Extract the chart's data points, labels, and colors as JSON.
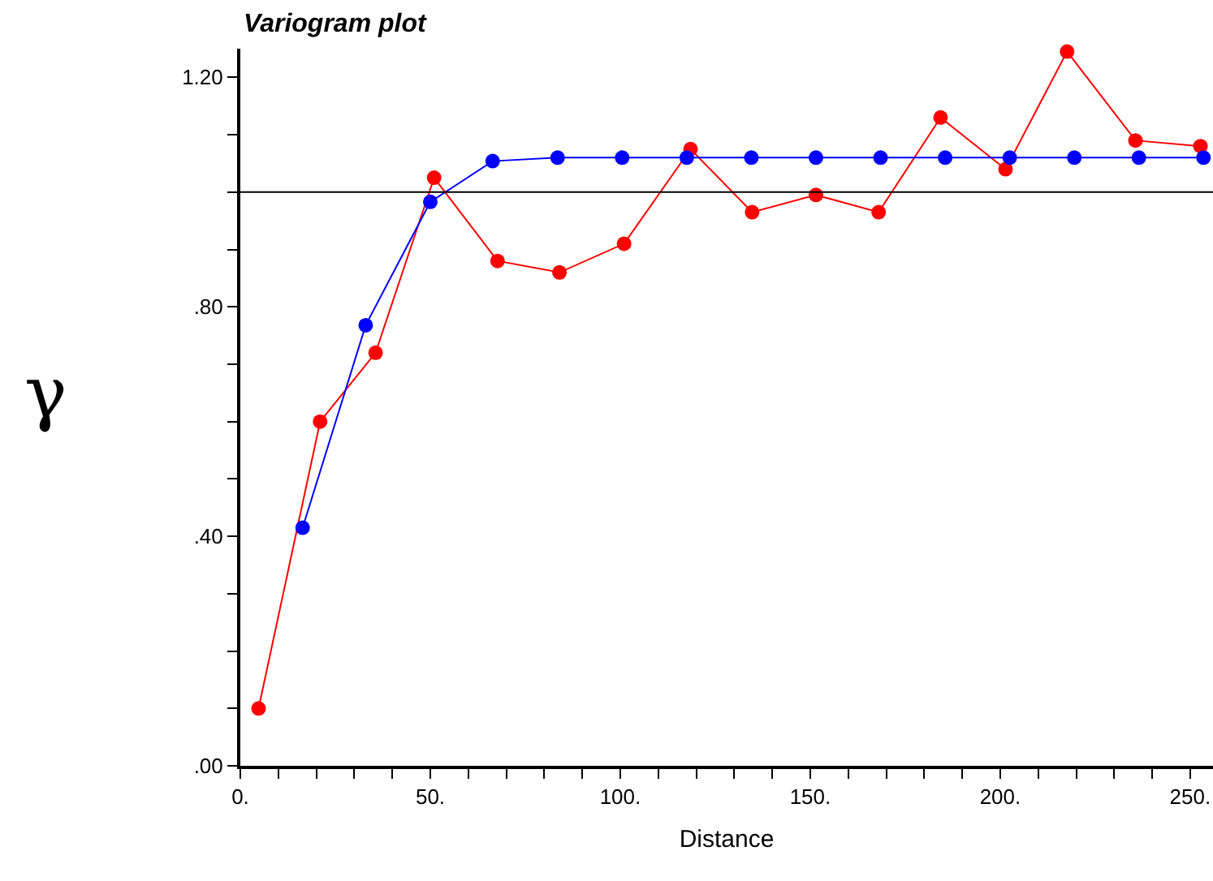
{
  "chart_data": {
    "type": "line",
    "title": "Variogram plot",
    "xlabel": "Distance",
    "ylabel": "γ",
    "xlim": [
      0,
      256
    ],
    "ylim": [
      0,
      1.25
    ],
    "xticks": [
      {
        "value": 0,
        "label": "0."
      },
      {
        "value": 10,
        "label": null
      },
      {
        "value": 20,
        "label": null
      },
      {
        "value": 30,
        "label": null
      },
      {
        "value": 40,
        "label": null
      },
      {
        "value": 50,
        "label": "50."
      },
      {
        "value": 60,
        "label": null
      },
      {
        "value": 70,
        "label": null
      },
      {
        "value": 80,
        "label": null
      },
      {
        "value": 90,
        "label": null
      },
      {
        "value": 100,
        "label": "100."
      },
      {
        "value": 110,
        "label": null
      },
      {
        "value": 120,
        "label": null
      },
      {
        "value": 130,
        "label": null
      },
      {
        "value": 140,
        "label": null
      },
      {
        "value": 150,
        "label": "150."
      },
      {
        "value": 160,
        "label": null
      },
      {
        "value": 170,
        "label": null
      },
      {
        "value": 180,
        "label": null
      },
      {
        "value": 190,
        "label": null
      },
      {
        "value": 200,
        "label": "200."
      },
      {
        "value": 210,
        "label": null
      },
      {
        "value": 220,
        "label": null
      },
      {
        "value": 230,
        "label": null
      },
      {
        "value": 240,
        "label": null
      },
      {
        "value": 250,
        "label": "250."
      }
    ],
    "yticks": [
      {
        "value": 0,
        "label": ".00"
      },
      {
        "value": 0.1,
        "label": null
      },
      {
        "value": 0.2,
        "label": null
      },
      {
        "value": 0.3,
        "label": null
      },
      {
        "value": 0.4,
        "label": ".40"
      },
      {
        "value": 0.5,
        "label": null
      },
      {
        "value": 0.6,
        "label": null
      },
      {
        "value": 0.7,
        "label": null
      },
      {
        "value": 0.8,
        "label": ".80"
      },
      {
        "value": 0.9,
        "label": null
      },
      {
        "value": 1.0,
        "label": null
      },
      {
        "value": 1.1,
        "label": null
      },
      {
        "value": 1.2,
        "label": "1.20"
      }
    ],
    "marker": "circle",
    "line_style": "solid",
    "ref_lines": [
      {
        "axis": "y",
        "value": 1.0,
        "label": null,
        "color": "#000000"
      }
    ],
    "series": [
      {
        "color": "#ff0000",
        "x": [
          4.8,
          21,
          35.6,
          51,
          67.7,
          84,
          101,
          118.5,
          134.7,
          151.5,
          168,
          184.3,
          201.4,
          217.6,
          235.6,
          252.7
        ],
        "values": [
          0.1,
          0.6,
          0.72,
          1.025,
          0.88,
          0.86,
          0.91,
          1.075,
          0.965,
          0.995,
          0.965,
          1.13,
          1.04,
          1.245,
          1.09,
          1.08
        ]
      },
      {
        "color": "#0000ff",
        "x": [
          16.4,
          33,
          50,
          66.4,
          83.5,
          100.5,
          117.5,
          134.5,
          151.5,
          168.5,
          185.5,
          202.5,
          219.5,
          236.5,
          253.5
        ],
        "values": [
          0.415,
          0.768,
          0.983,
          1.054,
          1.06,
          1.06,
          1.06,
          1.06,
          1.06,
          1.06,
          1.06,
          1.06,
          1.06,
          1.06,
          1.06
        ]
      }
    ]
  }
}
